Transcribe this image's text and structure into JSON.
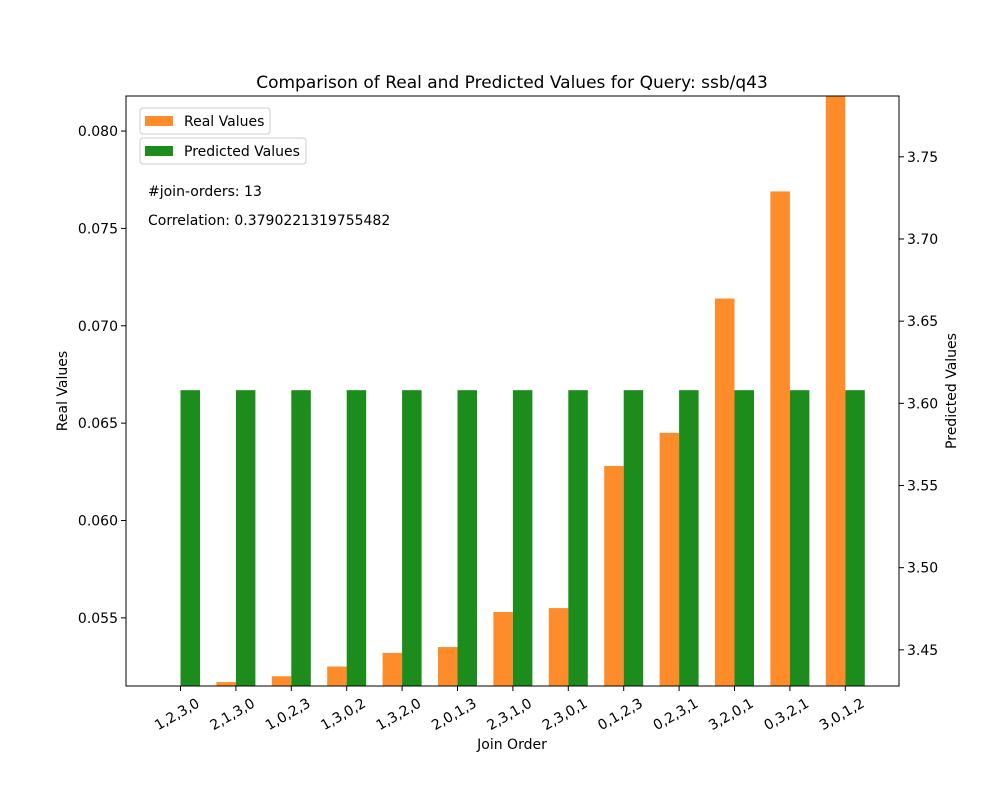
{
  "chart_data": {
    "type": "bar",
    "title": "Comparison of Real and Predicted Values for Query: ssb/q43",
    "xlabel": "Join Order",
    "ylabel_left": "Real Values",
    "ylabel_right": "Predicted Values",
    "categories": [
      "1,2,3,0",
      "2,1,3,0",
      "1,0,2,3",
      "1,3,0,2",
      "1,3,2,0",
      "2,0,1,3",
      "2,3,1,0",
      "2,3,0,1",
      "0,1,2,3",
      "0,2,3,1",
      "3,2,0,1",
      "0,3,2,1",
      "3,0,1,2"
    ],
    "series": [
      {
        "name": "Real Values",
        "axis": "left",
        "color": "#ff8c2b",
        "values": [
          0.0513,
          0.0517,
          0.052,
          0.0525,
          0.0532,
          0.0535,
          0.0553,
          0.0555,
          0.0628,
          0.0645,
          0.0714,
          0.0769,
          0.0818
        ]
      },
      {
        "name": "Predicted Values",
        "axis": "right",
        "color": "#1c8c1c",
        "values": [
          3.608,
          3.608,
          3.608,
          3.608,
          3.608,
          3.608,
          3.608,
          3.608,
          3.608,
          3.608,
          3.608,
          3.608,
          3.608
        ]
      }
    ],
    "ylim_left": [
      0.0515,
      0.0818
    ],
    "ylim_right": [
      3.428,
      3.787
    ],
    "yticks_left": [
      "0.055",
      "0.060",
      "0.065",
      "0.070",
      "0.075",
      "0.080"
    ],
    "yticks_right": [
      "3.45",
      "3.50",
      "3.55",
      "3.60",
      "3.65",
      "3.70",
      "3.75"
    ],
    "legend": {
      "placement": "top-left",
      "entries": [
        "Real Values",
        "Predicted Values"
      ]
    },
    "annotations": [
      "#join-orders: 13",
      "Correlation: 0.3790221319755482"
    ],
    "grid": false
  }
}
